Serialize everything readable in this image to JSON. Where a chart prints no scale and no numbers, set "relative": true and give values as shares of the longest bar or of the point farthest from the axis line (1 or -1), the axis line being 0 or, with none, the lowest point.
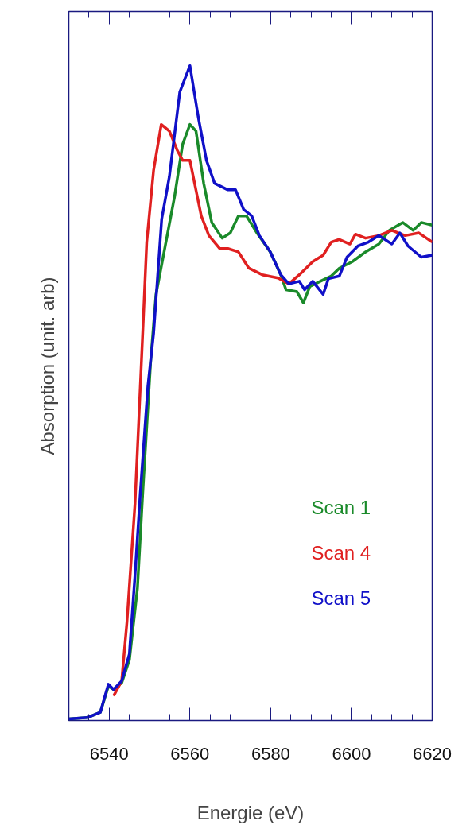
{
  "chart_data": {
    "type": "line",
    "xlabel": "Energie (eV)",
    "ylabel": "Absorption (unit. arb)",
    "relative": true,
    "xlim": [
      6530,
      6620
    ],
    "xticks": [
      6540,
      6560,
      6580,
      6600,
      6620
    ],
    "grid": false,
    "legend": "bottom right",
    "line_style": "solid",
    "series": [
      {
        "name": "Scan 1",
        "color": "#1a8a2a",
        "x": [
          6530,
          6534.6,
          6537.8,
          6539.8,
          6541.1,
          6543.1,
          6545,
          6547,
          6548.3,
          6550.3,
          6551.6,
          6553.6,
          6556.2,
          6558.2,
          6560,
          6561.5,
          6563.4,
          6565.4,
          6568,
          6570,
          6572,
          6574,
          6576.6,
          6579.9,
          6582.5,
          6583.8,
          6586.5,
          6588.1,
          6589.7,
          6592.3,
          6595,
          6597,
          6600.2,
          6603.5,
          6606.8,
          6609.4,
          6612.7,
          6615.3,
          6617.3,
          6620
        ],
        "values": [
          0,
          0.002,
          0.01,
          0.05,
          0.045,
          0.055,
          0.09,
          0.2,
          0.345,
          0.55,
          0.65,
          0.715,
          0.8,
          0.88,
          0.91,
          0.9,
          0.82,
          0.76,
          0.736,
          0.744,
          0.77,
          0.77,
          0.744,
          0.715,
          0.68,
          0.657,
          0.654,
          0.637,
          0.662,
          0.67,
          0.678,
          0.69,
          0.7,
          0.715,
          0.727,
          0.748,
          0.76,
          0.748,
          0.76,
          0.756
        ]
      },
      {
        "name": "Scan 4",
        "color": "#e02020",
        "x": [
          6541.1,
          6543.1,
          6544.4,
          6546.4,
          6548.3,
          6549.3,
          6551,
          6552.9,
          6554.9,
          6556.9,
          6558.2,
          6560,
          6562.8,
          6564.7,
          6567.4,
          6569.4,
          6572,
          6574.6,
          6577.9,
          6581.8,
          6584.5,
          6587.1,
          6590.4,
          6593,
          6595,
          6597,
          6599.6,
          6601,
          6603.5,
          6606.8,
          6610,
          6613.3,
          6616.7,
          6620
        ],
        "values": [
          0.035,
          0.058,
          0.148,
          0.33,
          0.59,
          0.73,
          0.84,
          0.91,
          0.9,
          0.87,
          0.855,
          0.855,
          0.77,
          0.74,
          0.72,
          0.72,
          0.715,
          0.69,
          0.68,
          0.675,
          0.666,
          0.68,
          0.7,
          0.71,
          0.73,
          0.734,
          0.727,
          0.742,
          0.736,
          0.74,
          0.748,
          0.74,
          0.744,
          0.73
        ]
      },
      {
        "name": "Scan 5",
        "color": "#1010c8",
        "x": [
          6530,
          6534.6,
          6537.8,
          6539.8,
          6541.1,
          6543.1,
          6545,
          6546.4,
          6547.7,
          6549.6,
          6551,
          6553,
          6554.9,
          6557.5,
          6560,
          6562.1,
          6564.1,
          6566.1,
          6569.4,
          6571.3,
          6573.3,
          6575.3,
          6577.2,
          6579.9,
          6582.5,
          6584.5,
          6587.1,
          6588.4,
          6590.4,
          6593,
          6594.3,
          6597,
          6598.9,
          6601.6,
          6604.2,
          6606.8,
          6610,
          6612,
          6614,
          6617.3,
          6620
        ],
        "values": [
          0,
          0.002,
          0.01,
          0.053,
          0.045,
          0.058,
          0.099,
          0.22,
          0.345,
          0.51,
          0.59,
          0.765,
          0.83,
          0.96,
          1,
          0.92,
          0.855,
          0.82,
          0.81,
          0.81,
          0.78,
          0.77,
          0.74,
          0.715,
          0.68,
          0.666,
          0.67,
          0.657,
          0.67,
          0.65,
          0.674,
          0.678,
          0.707,
          0.724,
          0.73,
          0.74,
          0.727,
          0.744,
          0.724,
          0.707,
          0.71
        ]
      }
    ]
  }
}
